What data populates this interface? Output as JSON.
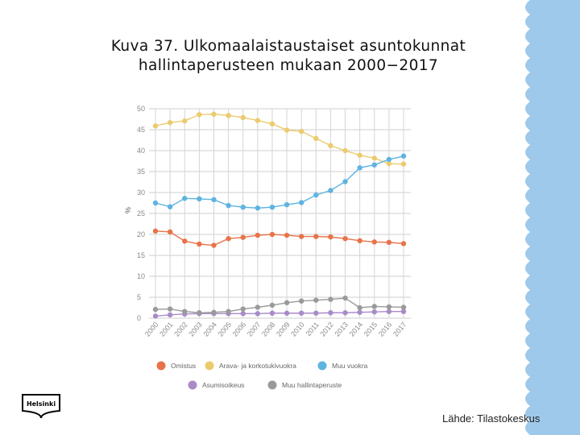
{
  "slide": {
    "title_line1": "Kuva 37. Ulkomaalaistaustaiset asuntokunnat",
    "title_line2": "hallintaperusteen mukaan 2000−2017",
    "source": "Lähde: Tilastokeskus",
    "logo_text": "Helsinki"
  },
  "colors": {
    "deco_blue": "#9ec9ea",
    "grid": "#cfcfcf",
    "tick": "#8a8a8a"
  },
  "chart_data": {
    "type": "line",
    "ylabel": "%",
    "ylim": [
      0,
      50
    ],
    "yticks": [
      0,
      5,
      10,
      15,
      20,
      25,
      30,
      35,
      40,
      45,
      50
    ],
    "x": [
      "2000",
      "2001",
      "2002",
      "2003",
      "2004",
      "2005",
      "2006",
      "2007",
      "2008",
      "2009",
      "2010",
      "2011",
      "2012",
      "2013",
      "2014",
      "2015",
      "2016",
      "2017"
    ],
    "legend_position": "bottom",
    "series": [
      {
        "name": "Omistus",
        "color": "#e8734a",
        "values": [
          20.8,
          20.6,
          18.4,
          17.7,
          17.4,
          19.0,
          19.3,
          19.8,
          20.0,
          19.8,
          19.5,
          19.5,
          19.4,
          19.0,
          18.5,
          18.2,
          18.1,
          17.8
        ]
      },
      {
        "name": "Arava- ja korkotukivuokra",
        "color": "#ebcb6e",
        "values": [
          45.9,
          46.7,
          47.1,
          48.6,
          48.7,
          48.4,
          47.9,
          47.2,
          46.4,
          44.9,
          44.6,
          42.9,
          41.2,
          40.0,
          38.9,
          38.2,
          36.9,
          36.8
        ]
      },
      {
        "name": "Muu vuokra",
        "color": "#5fb3e0",
        "values": [
          27.5,
          26.6,
          28.6,
          28.5,
          28.3,
          26.9,
          26.5,
          26.3,
          26.5,
          27.1,
          27.6,
          29.4,
          30.5,
          32.6,
          35.9,
          36.6,
          37.9,
          38.7
        ]
      },
      {
        "name": "Asumisoikeus",
        "color": "#a98bc9",
        "values": [
          0.5,
          0.8,
          1.0,
          1.1,
          1.1,
          1.1,
          1.1,
          1.1,
          1.2,
          1.2,
          1.2,
          1.2,
          1.3,
          1.3,
          1.4,
          1.5,
          1.6,
          1.6
        ]
      },
      {
        "name": "Muu hallintaperuste",
        "color": "#9a9a9a",
        "values": [
          2.1,
          2.2,
          1.6,
          1.3,
          1.4,
          1.6,
          2.2,
          2.6,
          3.1,
          3.7,
          4.1,
          4.3,
          4.5,
          4.8,
          2.5,
          2.8,
          2.7,
          2.6
        ]
      }
    ]
  }
}
